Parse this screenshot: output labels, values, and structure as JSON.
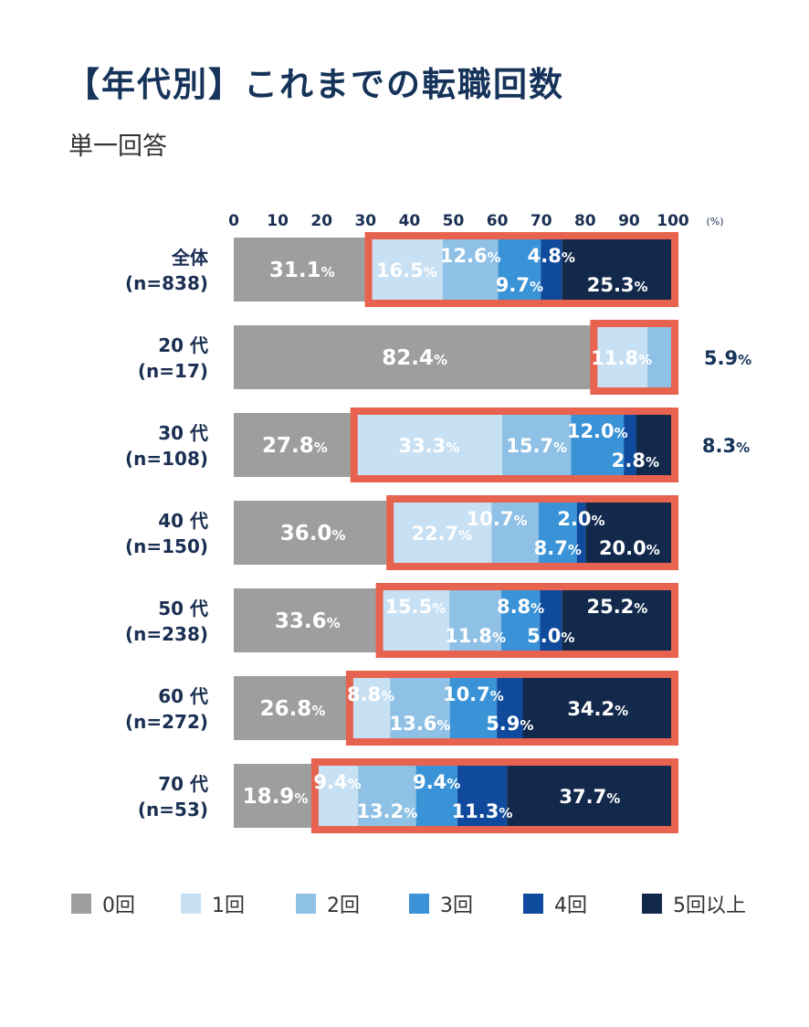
{
  "title": "【年代別】これまでの転職回数",
  "subtitle": "単一回答",
  "chart_data": {
    "type": "bar",
    "orientation": "horizontal",
    "stacked": true,
    "percent_unit": "(%)",
    "xlim": [
      0,
      100
    ],
    "x_ticks": [
      "0",
      "10",
      "20",
      "30",
      "40",
      "50",
      "60",
      "70",
      "80",
      "90",
      "100"
    ],
    "categories": [
      {
        "label": "全体",
        "n": "(n=838)"
      },
      {
        "label": "20 代",
        "n": "(n=17)"
      },
      {
        "label": "30 代",
        "n": "(n=108)"
      },
      {
        "label": "40 代",
        "n": "(n=150)"
      },
      {
        "label": "50 代",
        "n": "(n=238)"
      },
      {
        "label": "60 代",
        "n": "(n=272)"
      },
      {
        "label": "70 代",
        "n": "(n=53)"
      }
    ],
    "series": [
      {
        "name": "0回",
        "color": "#9e9e9e",
        "values": [
          31.1,
          82.4,
          27.8,
          36.0,
          33.6,
          26.8,
          18.9
        ]
      },
      {
        "name": "1回",
        "color": "#c8e0f3",
        "values": [
          16.5,
          11.8,
          33.3,
          22.7,
          15.5,
          8.8,
          9.4
        ]
      },
      {
        "name": "2回",
        "color": "#8fc0e5",
        "values": [
          12.6,
          5.9,
          15.7,
          10.7,
          11.8,
          13.6,
          13.2
        ]
      },
      {
        "name": "3回",
        "color": "#3a93d6",
        "values": [
          9.7,
          0,
          12.0,
          8.7,
          8.8,
          10.7,
          9.4
        ]
      },
      {
        "name": "4回",
        "color": "#0f4a9c",
        "values": [
          4.8,
          0,
          2.8,
          2.0,
          5.0,
          5.9,
          11.3
        ]
      },
      {
        "name": "5回以上",
        "color": "#13294b",
        "values": [
          25.3,
          0,
          8.3,
          20.0,
          25.2,
          34.2,
          37.7
        ]
      }
    ],
    "highlight_color": "#e8634f",
    "highlight_note": "red frame encloses all segments except 0回",
    "value_suffix": "%"
  }
}
